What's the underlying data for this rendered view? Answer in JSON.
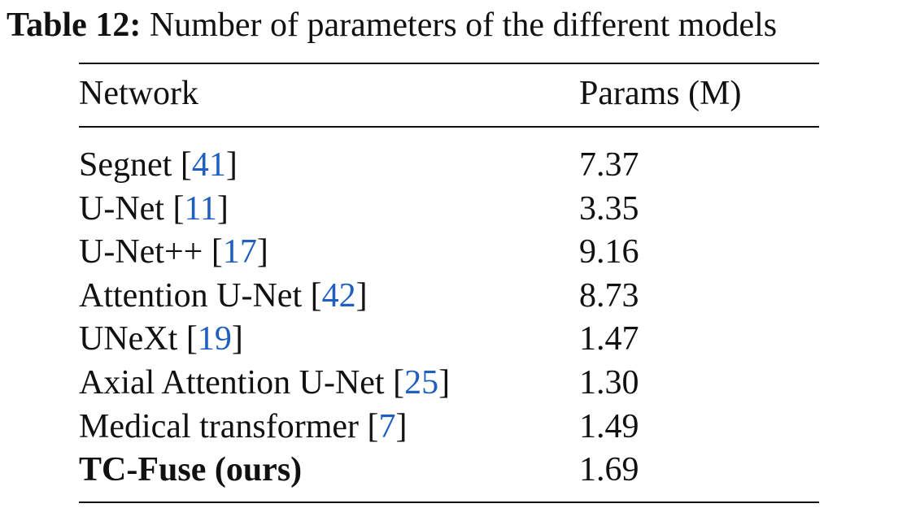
{
  "caption": {
    "label": "Table 12:",
    "text": "Number of parameters of the different models"
  },
  "table": {
    "headers": {
      "network": "Network",
      "params": "Params (M)"
    },
    "rows": [
      {
        "name": "Segnet",
        "ref": "41",
        "params": "7.37",
        "bold": false
      },
      {
        "name": "U-Net",
        "ref": "11",
        "params": "3.35",
        "bold": false
      },
      {
        "name": "U-Net++",
        "ref": "17",
        "params": "9.16",
        "bold": false
      },
      {
        "name": "Attention U-Net",
        "ref": "42",
        "params": "8.73",
        "bold": false
      },
      {
        "name": "UNeXt",
        "ref": "19",
        "params": "1.47",
        "bold": false
      },
      {
        "name": "Axial Attention U-Net",
        "ref": "25",
        "params": "1.30",
        "bold": false
      },
      {
        "name": "Medical transformer",
        "ref": "7",
        "params": "1.49",
        "bold": false
      },
      {
        "name": "TC-Fuse (ours)",
        "ref": "",
        "params": "1.69",
        "bold": true
      }
    ]
  },
  "colors": {
    "text": "#111111",
    "citation": "#1f5fbf"
  }
}
